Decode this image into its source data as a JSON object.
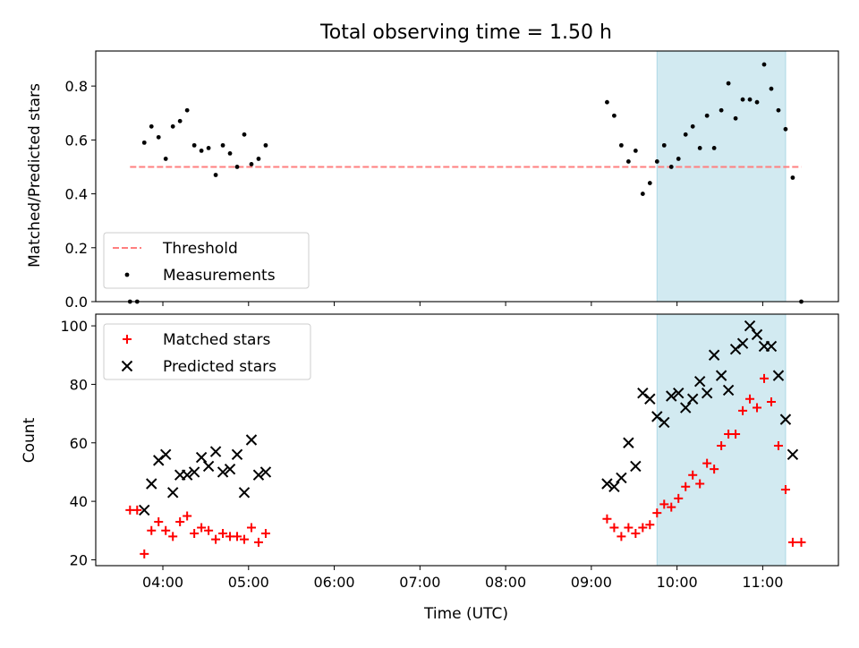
{
  "chart_data": [
    {
      "type": "scatter",
      "title": "Total observing time = 1.50 h",
      "ylabel": "Matched/Predicted stars",
      "xlabel": "",
      "xlim": [
        "03:13",
        "11:53"
      ],
      "ylim": [
        0,
        0.93
      ],
      "yticks": [
        "0.0",
        "0.2",
        "0.4",
        "0.6",
        "0.8"
      ],
      "highlight_span": {
        "from": "09:46",
        "to": "11:16",
        "color": "#add8e6"
      },
      "threshold": {
        "name": "Threshold",
        "y": 0.5,
        "from": "03:37",
        "to": "11:27",
        "color": "#ff7f7f",
        "style": "dashed"
      },
      "legend": {
        "placement": "lower-left",
        "entries": [
          "Threshold",
          "Measurements"
        ]
      },
      "series": [
        {
          "name": "Measurements",
          "marker": "dot",
          "color": "#000000",
          "points": [
            [
              "03:37",
              0.0
            ],
            [
              "03:42",
              0.0
            ],
            [
              "03:47",
              0.59
            ],
            [
              "03:52",
              0.65
            ],
            [
              "03:57",
              0.61
            ],
            [
              "04:02",
              0.53
            ],
            [
              "04:07",
              0.65
            ],
            [
              "04:12",
              0.67
            ],
            [
              "04:17",
              0.71
            ],
            [
              "04:22",
              0.58
            ],
            [
              "04:27",
              0.56
            ],
            [
              "04:32",
              0.57
            ],
            [
              "04:37",
              0.47
            ],
            [
              "04:42",
              0.58
            ],
            [
              "04:47",
              0.55
            ],
            [
              "04:52",
              0.5
            ],
            [
              "04:57",
              0.62
            ],
            [
              "05:02",
              0.51
            ],
            [
              "05:07",
              0.53
            ],
            [
              "05:12",
              0.58
            ],
            [
              "09:11",
              0.74
            ],
            [
              "09:16",
              0.69
            ],
            [
              "09:21",
              0.58
            ],
            [
              "09:26",
              0.52
            ],
            [
              "09:31",
              0.56
            ],
            [
              "09:36",
              0.4
            ],
            [
              "09:41",
              0.44
            ],
            [
              "09:46",
              0.52
            ],
            [
              "09:51",
              0.58
            ],
            [
              "09:56",
              0.5
            ],
            [
              "10:01",
              0.53
            ],
            [
              "10:06",
              0.62
            ],
            [
              "10:11",
              0.65
            ],
            [
              "10:16",
              0.57
            ],
            [
              "10:21",
              0.69
            ],
            [
              "10:26",
              0.57
            ],
            [
              "10:31",
              0.71
            ],
            [
              "10:36",
              0.81
            ],
            [
              "10:41",
              0.68
            ],
            [
              "10:46",
              0.75
            ],
            [
              "10:51",
              0.75
            ],
            [
              "10:56",
              0.74
            ],
            [
              "11:01",
              0.88
            ],
            [
              "11:06",
              0.79
            ],
            [
              "11:11",
              0.71
            ],
            [
              "11:16",
              0.64
            ],
            [
              "11:21",
              0.46
            ],
            [
              "11:27",
              0.0
            ]
          ]
        }
      ]
    },
    {
      "type": "scatter",
      "title": "",
      "xlabel": "Time (UTC)",
      "ylabel": "Count",
      "xlim": [
        "03:13",
        "11:53"
      ],
      "ylim": [
        18,
        104
      ],
      "xticks": [
        "04:00",
        "05:00",
        "06:00",
        "07:00",
        "08:00",
        "09:00",
        "10:00",
        "11:00"
      ],
      "yticks": [
        "20",
        "40",
        "60",
        "80",
        "100"
      ],
      "highlight_span": {
        "from": "09:46",
        "to": "11:16",
        "color": "#add8e6"
      },
      "legend": {
        "placement": "upper-left",
        "entries": [
          "Matched stars",
          "Predicted stars"
        ]
      },
      "series": [
        {
          "name": "Matched stars",
          "marker": "plus",
          "color": "#ff0000",
          "points": [
            [
              "03:37",
              37
            ],
            [
              "03:42",
              37
            ],
            [
              "03:47",
              22
            ],
            [
              "03:52",
              30
            ],
            [
              "03:57",
              33
            ],
            [
              "04:02",
              30
            ],
            [
              "04:07",
              28
            ],
            [
              "04:12",
              33
            ],
            [
              "04:17",
              35
            ],
            [
              "04:22",
              29
            ],
            [
              "04:27",
              31
            ],
            [
              "04:32",
              30
            ],
            [
              "04:37",
              27
            ],
            [
              "04:42",
              29
            ],
            [
              "04:47",
              28
            ],
            [
              "04:52",
              28
            ],
            [
              "04:57",
              27
            ],
            [
              "05:02",
              31
            ],
            [
              "05:07",
              26
            ],
            [
              "05:12",
              29
            ],
            [
              "09:11",
              34
            ],
            [
              "09:16",
              31
            ],
            [
              "09:21",
              28
            ],
            [
              "09:26",
              31
            ],
            [
              "09:31",
              29
            ],
            [
              "09:36",
              31
            ],
            [
              "09:41",
              32
            ],
            [
              "09:46",
              36
            ],
            [
              "09:51",
              39
            ],
            [
              "09:56",
              38
            ],
            [
              "10:01",
              41
            ],
            [
              "10:06",
              45
            ],
            [
              "10:11",
              49
            ],
            [
              "10:16",
              46
            ],
            [
              "10:21",
              53
            ],
            [
              "10:26",
              51
            ],
            [
              "10:31",
              59
            ],
            [
              "10:36",
              63
            ],
            [
              "10:41",
              63
            ],
            [
              "10:46",
              71
            ],
            [
              "10:51",
              75
            ],
            [
              "10:56",
              72
            ],
            [
              "11:01",
              82
            ],
            [
              "11:06",
              74
            ],
            [
              "11:11",
              59
            ],
            [
              "11:16",
              44
            ],
            [
              "11:21",
              26
            ],
            [
              "11:27",
              26
            ]
          ]
        },
        {
          "name": "Predicted stars",
          "marker": "x",
          "color": "#000000",
          "points": [
            [
              "03:47",
              37
            ],
            [
              "03:52",
              46
            ],
            [
              "03:57",
              54
            ],
            [
              "04:02",
              56
            ],
            [
              "04:07",
              43
            ],
            [
              "04:12",
              49
            ],
            [
              "04:17",
              49
            ],
            [
              "04:22",
              50
            ],
            [
              "04:27",
              55
            ],
            [
              "04:32",
              52
            ],
            [
              "04:37",
              57
            ],
            [
              "04:42",
              50
            ],
            [
              "04:47",
              51
            ],
            [
              "04:52",
              56
            ],
            [
              "04:57",
              43
            ],
            [
              "05:02",
              61
            ],
            [
              "05:07",
              49
            ],
            [
              "05:12",
              50
            ],
            [
              "09:11",
              46
            ],
            [
              "09:16",
              45
            ],
            [
              "09:21",
              48
            ],
            [
              "09:26",
              60
            ],
            [
              "09:31",
              52
            ],
            [
              "09:36",
              77
            ],
            [
              "09:41",
              75
            ],
            [
              "09:46",
              69
            ],
            [
              "09:51",
              67
            ],
            [
              "09:56",
              76
            ],
            [
              "10:01",
              77
            ],
            [
              "10:06",
              72
            ],
            [
              "10:11",
              75
            ],
            [
              "10:16",
              81
            ],
            [
              "10:21",
              77
            ],
            [
              "10:26",
              90
            ],
            [
              "10:31",
              83
            ],
            [
              "10:36",
              78
            ],
            [
              "10:41",
              92
            ],
            [
              "10:46",
              94
            ],
            [
              "10:51",
              100
            ],
            [
              "10:56",
              97
            ],
            [
              "11:01",
              93
            ],
            [
              "11:06",
              93
            ],
            [
              "11:11",
              83
            ],
            [
              "11:16",
              68
            ],
            [
              "11:21",
              56
            ]
          ]
        }
      ]
    }
  ]
}
